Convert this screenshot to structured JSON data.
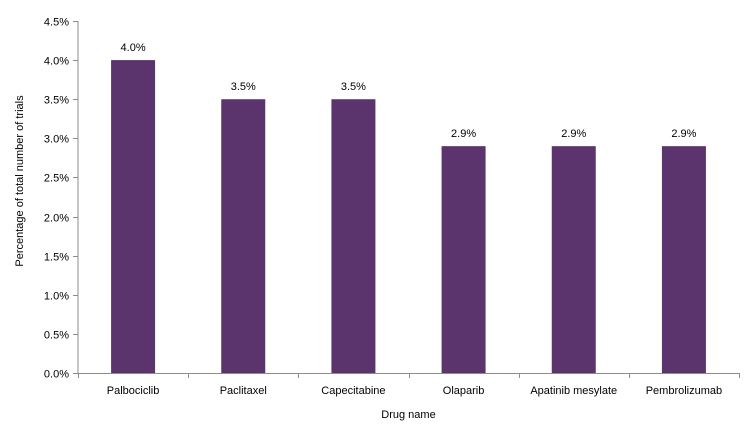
{
  "chart_data": {
    "type": "bar",
    "title": "",
    "xlabel": "Drug name",
    "ylabel": "Percentage of total number of trials",
    "categories": [
      "Palbociclib",
      "Paclitaxel",
      "Capecitabine",
      "Olaparib",
      "Apatinib mesylate",
      "Pembrolizumab"
    ],
    "values": [
      4.0,
      3.5,
      3.5,
      2.9,
      2.9,
      2.9
    ],
    "value_labels": [
      "4.0%",
      "3.5%",
      "3.5%",
      "2.9%",
      "2.9%",
      "2.9%"
    ],
    "ylim": [
      0,
      4.5
    ],
    "yticks": [
      0,
      0.5,
      1.0,
      1.5,
      2.0,
      2.5,
      3.0,
      3.5,
      4.0,
      4.5
    ],
    "ytick_labels": [
      "0.0%",
      "0.5%",
      "1.0%",
      "1.5%",
      "2.0%",
      "2.5%",
      "3.0%",
      "3.5%",
      "4.0%",
      "4.5%"
    ],
    "grid": false,
    "legend": "none",
    "bar_color": "#5b346e",
    "axis_color": "#8c8c8c"
  }
}
